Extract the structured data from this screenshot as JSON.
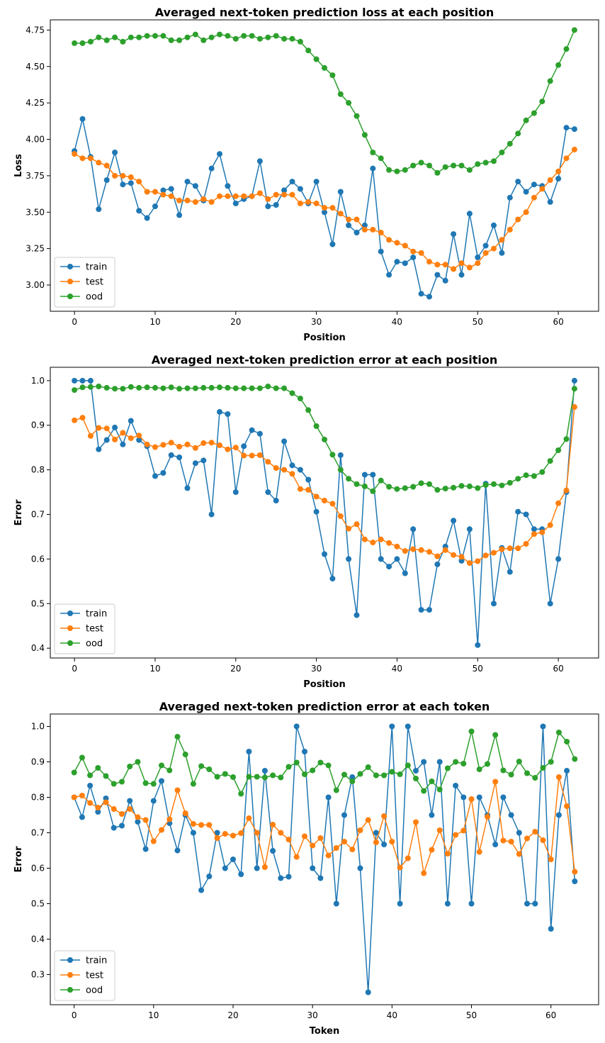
{
  "colors": {
    "train": "#1f77b4",
    "test": "#ff7f0e",
    "ood": "#2ca02c"
  },
  "chart_data": [
    {
      "type": "line",
      "title": "Averaged next-token prediction loss at each position",
      "xlabel": "Position",
      "ylabel": "Loss",
      "xlim": [
        -3,
        65
      ],
      "ylim": [
        2.82,
        4.82
      ],
      "xticks": [
        0,
        10,
        20,
        30,
        40,
        50,
        60
      ],
      "yticks": [
        3.0,
        3.25,
        3.5,
        3.75,
        4.0,
        4.25,
        4.5,
        4.75
      ],
      "ytick_labels": [
        "3.00",
        "3.25",
        "3.50",
        "3.75",
        "4.00",
        "4.25",
        "4.50",
        "4.75"
      ],
      "legend": "lower-left",
      "x_start": 0,
      "series": [
        {
          "name": "train",
          "color": "#1f77b4",
          "values": [
            3.92,
            4.14,
            3.88,
            3.52,
            3.72,
            3.91,
            3.69,
            3.7,
            3.51,
            3.46,
            3.54,
            3.65,
            3.66,
            3.48,
            3.71,
            3.68,
            3.58,
            3.8,
            3.9,
            3.68,
            3.56,
            3.59,
            3.61,
            3.85,
            3.54,
            3.55,
            3.65,
            3.71,
            3.66,
            3.56,
            3.71,
            3.5,
            3.28,
            3.64,
            3.41,
            3.36,
            3.41,
            3.8,
            3.23,
            3.07,
            3.16,
            3.15,
            3.19,
            2.94,
            2.92,
            3.07,
            3.03,
            3.35,
            3.07,
            3.49,
            3.19,
            3.27,
            3.41,
            3.22,
            3.6,
            3.71,
            3.64,
            3.69,
            3.68,
            3.57,
            3.73,
            4.08,
            4.07
          ]
        },
        {
          "name": "test",
          "color": "#ff7f0e",
          "values": [
            3.9,
            3.87,
            3.87,
            3.84,
            3.82,
            3.75,
            3.75,
            3.74,
            3.71,
            3.64,
            3.64,
            3.62,
            3.61,
            3.58,
            3.58,
            3.57,
            3.59,
            3.57,
            3.61,
            3.61,
            3.61,
            3.61,
            3.61,
            3.63,
            3.59,
            3.62,
            3.62,
            3.62,
            3.56,
            3.57,
            3.56,
            3.53,
            3.53,
            3.49,
            3.45,
            3.45,
            3.38,
            3.38,
            3.36,
            3.31,
            3.29,
            3.27,
            3.23,
            3.22,
            3.16,
            3.14,
            3.14,
            3.11,
            3.15,
            3.12,
            3.15,
            3.22,
            3.25,
            3.31,
            3.38,
            3.45,
            3.5,
            3.6,
            3.66,
            3.72,
            3.78,
            3.87,
            3.93
          ]
        },
        {
          "name": "ood",
          "color": "#2ca02c",
          "values": [
            4.66,
            4.66,
            4.67,
            4.7,
            4.68,
            4.7,
            4.67,
            4.7,
            4.7,
            4.71,
            4.71,
            4.71,
            4.68,
            4.68,
            4.7,
            4.72,
            4.68,
            4.7,
            4.72,
            4.71,
            4.69,
            4.71,
            4.71,
            4.69,
            4.7,
            4.71,
            4.69,
            4.69,
            4.67,
            4.61,
            4.55,
            4.49,
            4.44,
            4.31,
            4.25,
            4.16,
            4.03,
            3.91,
            3.87,
            3.79,
            3.78,
            3.79,
            3.82,
            3.84,
            3.82,
            3.77,
            3.81,
            3.82,
            3.82,
            3.79,
            3.83,
            3.84,
            3.85,
            3.91,
            3.97,
            4.04,
            4.13,
            4.18,
            4.26,
            4.4,
            4.51,
            4.62,
            4.75
          ]
        }
      ]
    },
    {
      "type": "line",
      "title": "Averaged next-token prediction error at each position",
      "xlabel": "Position",
      "ylabel": "Error",
      "xlim": [
        -3,
        65
      ],
      "ylim": [
        0.378,
        1.03
      ],
      "xticks": [
        0,
        10,
        20,
        30,
        40,
        50,
        60
      ],
      "yticks": [
        0.4,
        0.5,
        0.6,
        0.7,
        0.8,
        0.9,
        1.0
      ],
      "ytick_labels": [
        "0.4",
        "0.5",
        "0.6",
        "0.7",
        "0.8",
        "0.9",
        "1.0"
      ],
      "legend": "lower-left",
      "x_start": 0,
      "series": [
        {
          "name": "train",
          "color": "#1f77b4",
          "values": [
            1.0,
            1.0,
            1.0,
            0.846,
            0.867,
            0.895,
            0.857,
            0.91,
            0.867,
            0.853,
            0.786,
            0.793,
            0.833,
            0.828,
            0.759,
            0.815,
            0.821,
            0.7,
            0.93,
            0.925,
            0.75,
            0.853,
            0.889,
            0.881,
            0.75,
            0.731,
            0.864,
            0.81,
            0.8,
            0.778,
            0.706,
            0.611,
            0.556,
            0.833,
            0.6,
            0.474,
            0.789,
            0.789,
            0.6,
            0.583,
            0.6,
            0.568,
            0.667,
            0.486,
            0.486,
            0.588,
            0.628,
            0.686,
            0.596,
            0.667,
            0.407,
            0.769,
            0.5,
            0.625,
            0.571,
            0.706,
            0.7,
            0.667,
            0.667,
            0.5,
            0.6,
            0.75,
            1.0
          ]
        },
        {
          "name": "test",
          "color": "#ff7f0e",
          "values": [
            0.911,
            0.917,
            0.876,
            0.894,
            0.893,
            0.868,
            0.883,
            0.871,
            0.877,
            0.857,
            0.851,
            0.856,
            0.861,
            0.852,
            0.857,
            0.849,
            0.86,
            0.861,
            0.855,
            0.846,
            0.85,
            0.832,
            0.832,
            0.833,
            0.818,
            0.804,
            0.8,
            0.791,
            0.757,
            0.755,
            0.74,
            0.731,
            0.724,
            0.696,
            0.668,
            0.678,
            0.644,
            0.637,
            0.644,
            0.636,
            0.628,
            0.618,
            0.622,
            0.62,
            0.616,
            0.606,
            0.62,
            0.609,
            0.605,
            0.591,
            0.595,
            0.608,
            0.614,
            0.622,
            0.624,
            0.624,
            0.634,
            0.656,
            0.66,
            0.676,
            0.725,
            0.754,
            0.941
          ]
        },
        {
          "name": "ood",
          "color": "#2ca02c",
          "values": [
            0.979,
            0.985,
            0.986,
            0.987,
            0.984,
            0.982,
            0.982,
            0.986,
            0.984,
            0.985,
            0.984,
            0.983,
            0.985,
            0.982,
            0.983,
            0.983,
            0.984,
            0.984,
            0.985,
            0.984,
            0.983,
            0.983,
            0.983,
            0.983,
            0.987,
            0.983,
            0.983,
            0.972,
            0.96,
            0.934,
            0.898,
            0.868,
            0.834,
            0.8,
            0.78,
            0.768,
            0.763,
            0.752,
            0.776,
            0.762,
            0.757,
            0.759,
            0.762,
            0.77,
            0.768,
            0.755,
            0.758,
            0.76,
            0.764,
            0.763,
            0.759,
            0.766,
            0.768,
            0.765,
            0.771,
            0.78,
            0.788,
            0.786,
            0.795,
            0.82,
            0.844,
            0.869,
            0.982
          ]
        }
      ]
    },
    {
      "type": "line",
      "title": "Averaged next-token prediction error at each token",
      "xlabel": "Token",
      "ylabel": "Error",
      "xlim": [
        -3,
        66
      ],
      "ylim": [
        0.215,
        1.035
      ],
      "xticks": [
        0,
        10,
        20,
        30,
        40,
        50,
        60
      ],
      "yticks": [
        0.3,
        0.4,
        0.5,
        0.6,
        0.7,
        0.8,
        0.9,
        1.0
      ],
      "ytick_labels": [
        "0.3",
        "0.4",
        "0.5",
        "0.6",
        "0.7",
        "0.8",
        "0.9",
        "1.0"
      ],
      "legend": "lower-left",
      "x_start": 0,
      "series": [
        {
          "name": "train",
          "color": "#1f77b4",
          "values": [
            0.8,
            0.744,
            0.833,
            0.759,
            0.797,
            0.714,
            0.72,
            0.79,
            0.731,
            0.654,
            0.79,
            0.846,
            0.727,
            0.65,
            0.75,
            0.7,
            0.538,
            0.577,
            0.7,
            0.6,
            0.625,
            0.583,
            0.929,
            0.6,
            0.875,
            0.649,
            0.572,
            0.576,
            1.0,
            0.929,
            0.6,
            0.572,
            0.8,
            0.5,
            0.75,
            0.857,
            0.6,
            0.25,
            0.7,
            0.667,
            1.0,
            0.5,
            1.0,
            0.875,
            0.9,
            0.75,
            0.9,
            0.5,
            0.833,
            0.8,
            0.5,
            0.8,
            0.75,
            0.667,
            0.8,
            0.75,
            0.7,
            0.5,
            0.5,
            1.0,
            0.429,
            0.75,
            0.875,
            0.563
          ]
        },
        {
          "name": "test",
          "color": "#ff7f0e",
          "values": [
            0.8,
            0.805,
            0.784,
            0.771,
            0.786,
            0.767,
            0.753,
            0.767,
            0.744,
            0.736,
            0.676,
            0.708,
            0.738,
            0.82,
            0.755,
            0.725,
            0.722,
            0.722,
            0.685,
            0.697,
            0.692,
            0.699,
            0.741,
            0.7,
            0.603,
            0.723,
            0.7,
            0.681,
            0.632,
            0.69,
            0.664,
            0.685,
            0.636,
            0.657,
            0.675,
            0.653,
            0.707,
            0.736,
            0.673,
            0.747,
            0.675,
            0.602,
            0.628,
            0.73,
            0.586,
            0.652,
            0.707,
            0.641,
            0.694,
            0.706,
            0.795,
            0.646,
            0.745,
            0.844,
            0.678,
            0.675,
            0.64,
            0.684,
            0.703,
            0.679,
            0.625,
            0.857,
            0.775,
            0.59
          ]
        },
        {
          "name": "ood",
          "color": "#2ca02c",
          "values": [
            0.87,
            0.912,
            0.862,
            0.883,
            0.86,
            0.838,
            0.844,
            0.887,
            0.9,
            0.84,
            0.838,
            0.89,
            0.876,
            0.971,
            0.921,
            0.838,
            0.888,
            0.879,
            0.858,
            0.866,
            0.857,
            0.81,
            0.858,
            0.858,
            0.856,
            0.862,
            0.856,
            0.886,
            0.898,
            0.865,
            0.876,
            0.898,
            0.89,
            0.82,
            0.864,
            0.845,
            0.866,
            0.885,
            0.862,
            0.862,
            0.872,
            0.865,
            0.89,
            0.853,
            0.818,
            0.845,
            0.822,
            0.882,
            0.9,
            0.895,
            0.986,
            0.879,
            0.894,
            0.976,
            0.876,
            0.864,
            0.901,
            0.868,
            0.855,
            0.883,
            0.9,
            0.983,
            0.957,
            0.908
          ]
        }
      ]
    }
  ]
}
